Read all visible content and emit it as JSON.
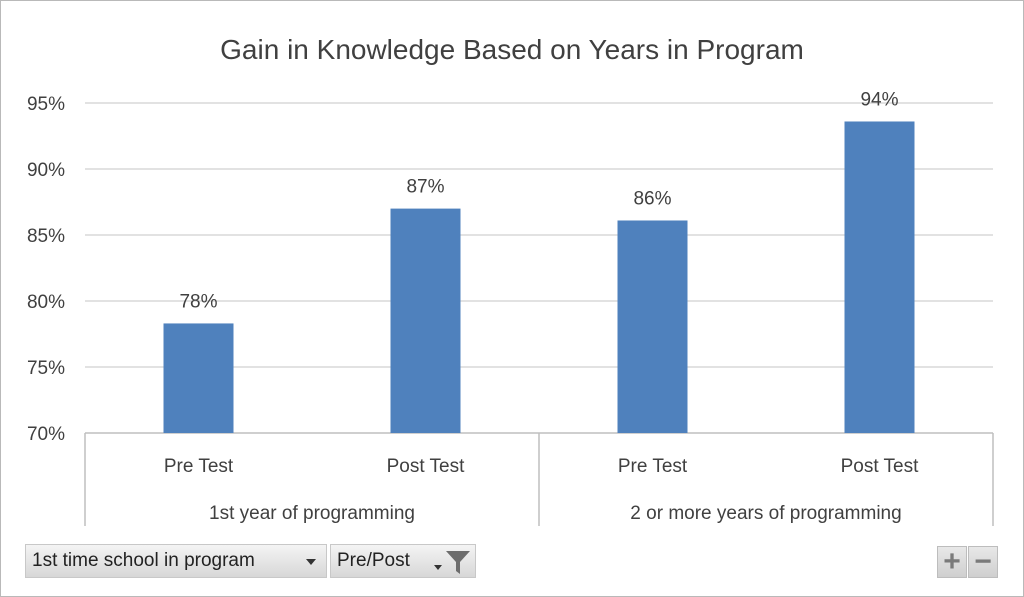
{
  "chart_data": {
    "type": "bar",
    "title": "Gain in Knowledge Based on Years in Program",
    "ylim": [
      70,
      95
    ],
    "yticks": [
      "70%",
      "75%",
      "80%",
      "85%",
      "90%",
      "95%"
    ],
    "grid": true,
    "groups": [
      {
        "label": "1st year of programming",
        "categories": [
          "Pre Test",
          "Post Test"
        ],
        "values": [
          78.3,
          87.0
        ],
        "data_labels": [
          "78%",
          "87%"
        ]
      },
      {
        "label": "2 or more years of programming",
        "categories": [
          "Pre Test",
          "Post Test"
        ],
        "values": [
          86.1,
          93.6
        ],
        "data_labels": [
          "86%",
          "94%"
        ]
      }
    ],
    "bar_color": "#4f81bd"
  },
  "controls": {
    "filter_field_1": "1st time school in program",
    "filter_field_2": "Pre/Post",
    "zoom_in": "+",
    "zoom_out": "−"
  }
}
